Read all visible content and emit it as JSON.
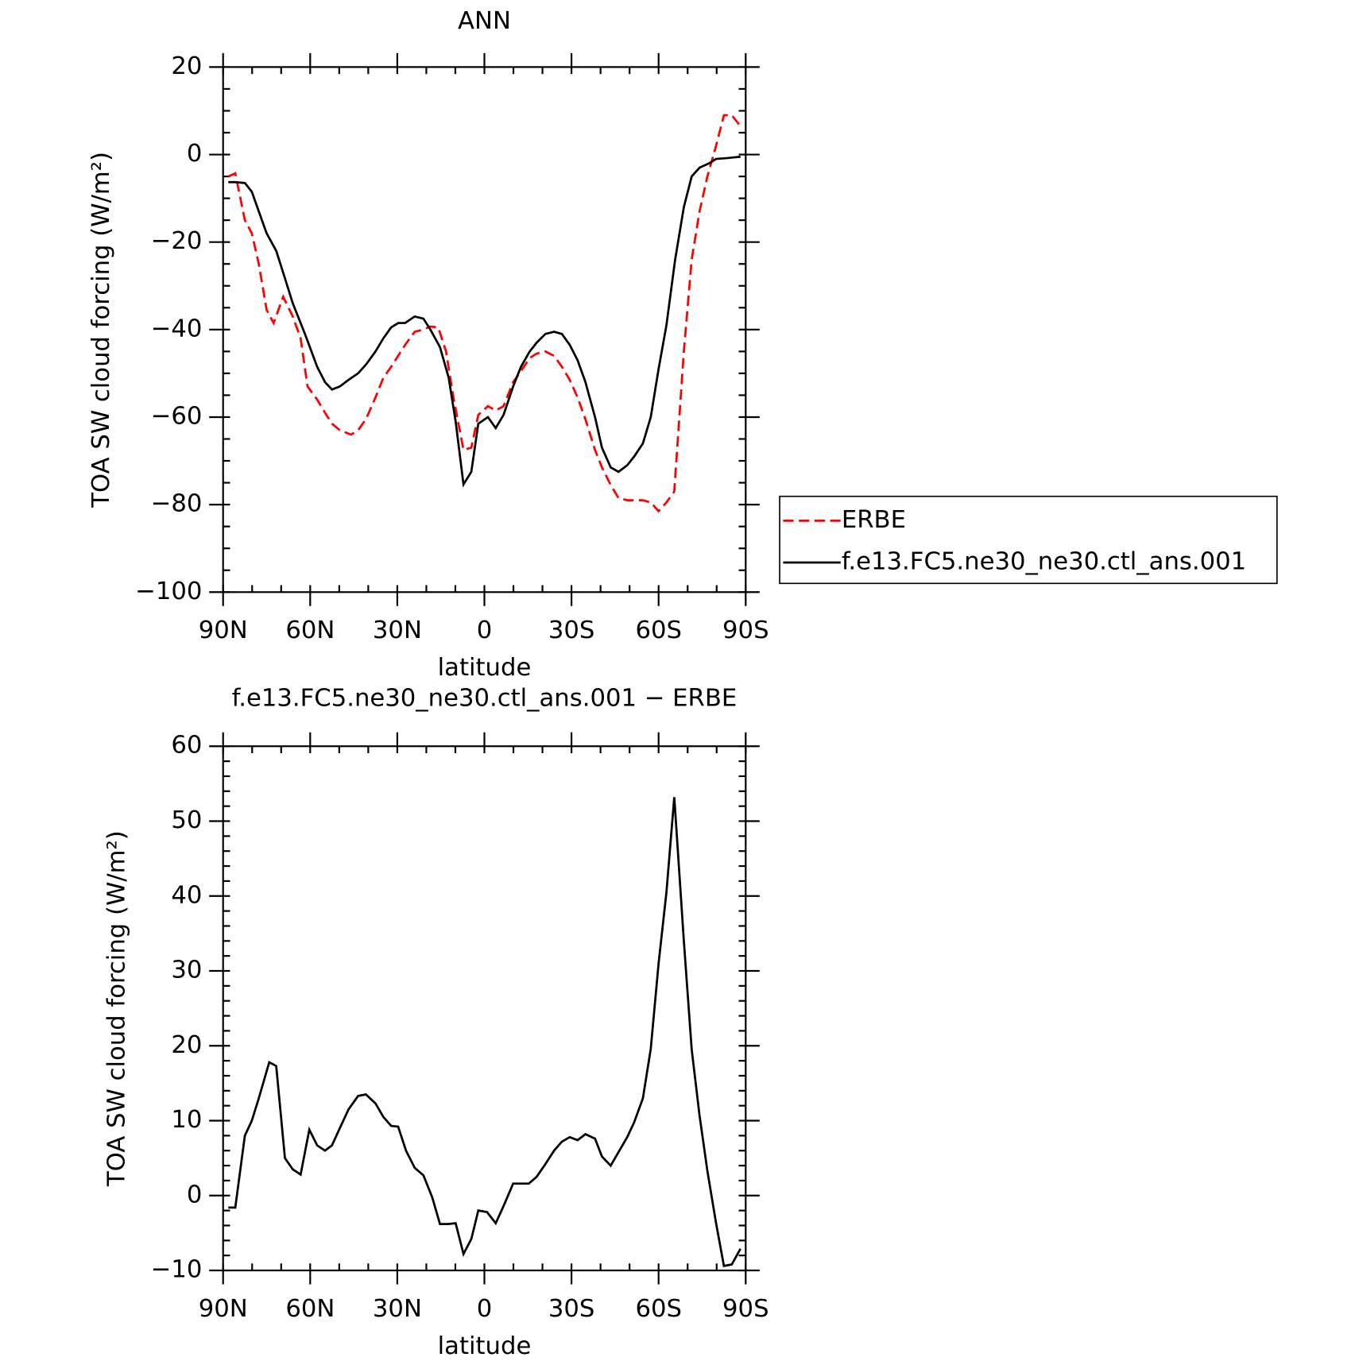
{
  "chart_data": [
    {
      "type": "line",
      "title": "ANN",
      "xlabel": "latitude",
      "ylabel": "TOA SW cloud forcing (W/m²)",
      "xlim": [
        90,
        -90
      ],
      "xticks": [
        {
          "value": 90,
          "label": "90N"
        },
        {
          "value": 60,
          "label": "60N"
        },
        {
          "value": 30,
          "label": "30N"
        },
        0,
        {
          "value": -30,
          "label": "30S"
        },
        {
          "value": -60,
          "label": "60S"
        },
        {
          "value": -90,
          "label": "90S"
        }
      ],
      "ylim": [
        -100,
        20
      ],
      "yticks": [
        20,
        0,
        {
          "value": -20,
          "label": "−20"
        },
        {
          "value": -40,
          "label": "−40"
        },
        {
          "value": -60,
          "label": "−60"
        },
        {
          "value": -80,
          "label": "−80"
        },
        {
          "value": -100,
          "label": "−100"
        }
      ],
      "legend": "right",
      "series": [
        {
          "name": "ERBE",
          "color": "#ff0000",
          "linestyle": "dashed",
          "x": [
            88.2,
            85.8,
            82.5,
            80.1,
            77.7,
            75,
            72.6,
            69.3,
            66,
            63.3,
            60.9,
            57.6,
            54.9,
            52.5,
            49.8,
            45.9,
            43.5,
            40.8,
            37.5,
            34.8,
            32.1,
            29.7,
            27.3,
            24,
            21,
            18.6,
            15.9,
            13.2,
            10.8,
            7.2,
            4.5,
            2.1,
            -1.2,
            -3.9,
            -6.6,
            -9.9,
            -12.6,
            -15.6,
            -18,
            -21,
            -24,
            -26.7,
            -29.4,
            -32.1,
            -34.8,
            -38.1,
            -40.5,
            -43.5,
            -46.2,
            -49.2,
            -54.6,
            -57.3,
            -60,
            -62.7,
            -65.4,
            -68.7,
            -71.4,
            -74.1,
            -76.8,
            -79.8,
            -82.5,
            -85.2,
            -88.2
          ],
          "values": [
            -5,
            -4.3,
            -15,
            -18,
            -25,
            -35.5,
            -38.5,
            -32.5,
            -37,
            -42,
            -53,
            -56,
            -59,
            -61.5,
            -63,
            -64,
            -63,
            -60.5,
            -55.5,
            -51,
            -48.5,
            -46,
            -43.5,
            -40.5,
            -40,
            -39.3,
            -39.5,
            -45,
            -55,
            -67.5,
            -67,
            -59.5,
            -57.5,
            -58.5,
            -57.5,
            -52,
            -49.5,
            -46.5,
            -45.5,
            -45,
            -46,
            -48.5,
            -51.5,
            -55.5,
            -60.5,
            -67.5,
            -71.5,
            -75.5,
            -78.5,
            -79,
            -79,
            -79.5,
            -81.5,
            -79.5,
            -77,
            -45,
            -24,
            -13,
            -5,
            2,
            9,
            9,
            6.5
          ]
        },
        {
          "name": "f.e13.FC5.ne30_ne30.ctl_ans.001",
          "color": "#000000",
          "linestyle": "solid",
          "x": [
            88.2,
            85.8,
            82.5,
            80.1,
            77.7,
            75,
            71.7,
            69.3,
            66,
            61.8,
            57.6,
            54.9,
            52.5,
            49.8,
            46.8,
            43.5,
            40.8,
            37.5,
            34.8,
            32.1,
            29.7,
            27.3,
            24,
            21,
            18.6,
            15.3,
            12.3,
            9.9,
            7.2,
            4.5,
            2.1,
            -1.2,
            -3.9,
            -6.6,
            -9.9,
            -12.6,
            -15.6,
            -18,
            -21,
            -24,
            -26.7,
            -29.4,
            -32.1,
            -34.8,
            -38.1,
            -40.5,
            -43.5,
            -46.2,
            -49.2,
            -51.6,
            -54.6,
            -57.3,
            -60,
            -62.7,
            -65.7,
            -68.7,
            -71.4,
            -74.1,
            -77.4,
            -79.8,
            -83.7,
            -88.2
          ],
          "values": [
            -6.3,
            -6.3,
            -6.5,
            -8.5,
            -13,
            -18,
            -22,
            -27,
            -34,
            -41,
            -48.5,
            -52,
            -53.7,
            -53,
            -51.5,
            -50,
            -48,
            -45,
            -42,
            -39.5,
            -38.5,
            -38.5,
            -37,
            -37.5,
            -40,
            -44,
            -51,
            -61,
            -75.4,
            -72.5,
            -61.5,
            -60,
            -62.5,
            -59.5,
            -53,
            -48.5,
            -45,
            -43,
            -41,
            -40.5,
            -41,
            -43.5,
            -47,
            -52,
            -60,
            -67,
            -71.5,
            -72.5,
            -71,
            -69,
            -66,
            -60,
            -49,
            -39,
            -24,
            -12,
            -5,
            -3,
            -2,
            -1,
            -0.8,
            -0.5
          ]
        }
      ]
    },
    {
      "type": "line",
      "title": "f.e13.FC5.ne30_ne30.ctl_ans.001 − ERBE",
      "xlabel": "latitude",
      "ylabel": "TOA SW cloud forcing (W/m²)",
      "xlim": [
        90,
        -90
      ],
      "xticks": [
        {
          "value": 90,
          "label": "90N"
        },
        {
          "value": 60,
          "label": "60N"
        },
        {
          "value": 30,
          "label": "30N"
        },
        0,
        {
          "value": -30,
          "label": "30S"
        },
        {
          "value": -60,
          "label": "60S"
        },
        {
          "value": -90,
          "label": "90S"
        }
      ],
      "ylim": [
        -10,
        60
      ],
      "yticks": [
        60,
        50,
        40,
        30,
        20,
        10,
        0,
        {
          "value": -10,
          "label": "−10"
        }
      ],
      "series": [
        {
          "color": "#000000",
          "linestyle": "solid",
          "x": [
            88.2,
            85.8,
            82.5,
            80.1,
            77.7,
            74.1,
            71.7,
            68.7,
            66,
            63.3,
            60.3,
            57.6,
            54.9,
            52.5,
            49.8,
            46.8,
            43.5,
            40.8,
            37.5,
            34.8,
            32.1,
            29.7,
            27,
            24,
            21,
            18,
            15.3,
            12.6,
            9.9,
            7.2,
            4.5,
            2.1,
            -0.9,
            -3.9,
            -6.6,
            -9.9,
            -12.6,
            -15.3,
            -18,
            -21,
            -24,
            -26.7,
            -29.4,
            -32.1,
            -34.8,
            -38.1,
            -40.5,
            -43.5,
            -46.2,
            -49.2,
            -51.6,
            -54.6,
            -57.3,
            -60,
            -62.7,
            -65.4,
            -68.7,
            -71.4,
            -74.1,
            -76.8,
            -79.8,
            -82.5,
            -85.2,
            -88.2
          ],
          "values": [
            -1.6,
            -1.6,
            8,
            10,
            13,
            17.8,
            17.3,
            5,
            3.5,
            2.8,
            8.8,
            6.7,
            6,
            6.7,
            9,
            11.5,
            13.3,
            13.5,
            12.3,
            10.5,
            9.3,
            9.2,
            6,
            3.7,
            2.7,
            -0.2,
            -3.8,
            -3.8,
            -3.7,
            -7.8,
            -5.8,
            -2,
            -2.2,
            -3.7,
            -1.4,
            1.6,
            1.6,
            1.6,
            2.5,
            4.2,
            6,
            7.2,
            7.8,
            7.4,
            8.2,
            7.6,
            5.2,
            4,
            5.8,
            7.8,
            9.8,
            13,
            19.6,
            31,
            40.5,
            53.2,
            34,
            19.5,
            10.7,
            3.3,
            -3.7,
            -9.4,
            -9.2,
            -7.1
          ]
        }
      ]
    }
  ]
}
